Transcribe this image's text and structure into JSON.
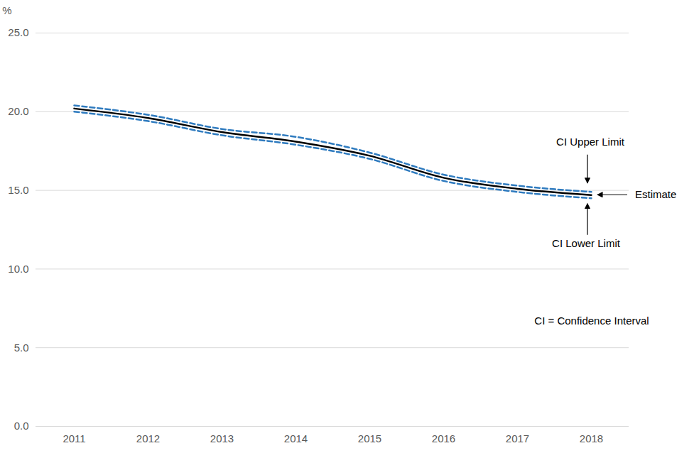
{
  "chart_data": {
    "type": "line",
    "ylabel": "%",
    "categories": [
      "2011",
      "2012",
      "2013",
      "2014",
      "2015",
      "2016",
      "2017",
      "2018"
    ],
    "series": [
      {
        "name": "CI Upper Limit",
        "color": "#2f7bbf",
        "line_style": "dashed",
        "values": [
          20.4,
          19.8,
          18.9,
          18.4,
          17.4,
          16.0,
          15.3,
          14.9
        ]
      },
      {
        "name": "Estimate",
        "color": "#000000",
        "line_style": "solid",
        "values": [
          20.2,
          19.6,
          18.7,
          18.1,
          17.2,
          15.8,
          15.1,
          14.7
        ]
      },
      {
        "name": "CI Lower Limit",
        "color": "#2f7bbf",
        "line_style": "dashed",
        "values": [
          20.0,
          19.4,
          18.5,
          17.9,
          17.0,
          15.6,
          14.9,
          14.5
        ]
      }
    ],
    "annotations": [
      "CI = Confidence Interval"
    ],
    "ylim": [
      0,
      25
    ],
    "yticks": [
      {
        "value": 0,
        "label": "0.0"
      },
      {
        "value": 5,
        "label": "5.0"
      },
      {
        "value": 10,
        "label": "10.0"
      },
      {
        "value": 15,
        "label": "15.0"
      },
      {
        "value": 20,
        "label": "20.0"
      },
      {
        "value": 25,
        "label": "25.0"
      }
    ],
    "grid": true
  }
}
